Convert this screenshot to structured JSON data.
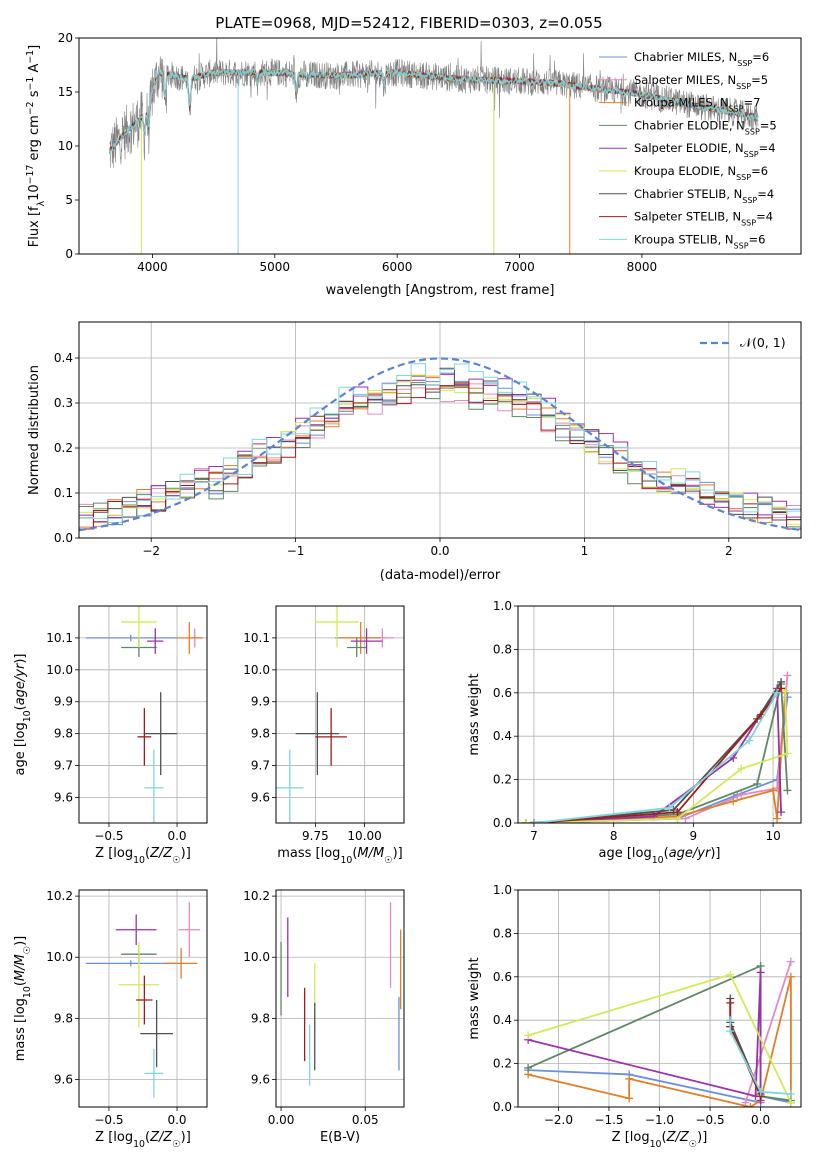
{
  "figure_title": "PLATE=0968, MJD=52412, FIBERID=0303, z=0.055",
  "colors": {
    "chabrier_miles": "#6b8fd8",
    "salpeter_miles": "#e58ac0",
    "kroupa_miles": "#e07f2a",
    "chabrier_elodie": "#5e8766",
    "salpeter_elodie": "#9932aa",
    "kroupa_elodie": "#d4e85a",
    "chabrier_stelib": "#505050",
    "salpeter_stelib": "#a01b1b",
    "kroupa_stelib": "#7fd6dc",
    "data": "#808080",
    "normal": "#5b84d0"
  },
  "chart_data": [
    {
      "id": "spectrum",
      "type": "line",
      "title": "PLATE=0968, MJD=52412, FIBERID=0303, z=0.055",
      "xlabel": "wavelength [Angstrom, rest frame]",
      "ylabel": "Flux [f_λ 10^-17 erg cm^-2 s^-1 A^-1]",
      "xlim": [
        3400,
        9300
      ],
      "ylim": [
        0,
        20
      ],
      "xticks": [
        4000,
        5000,
        6000,
        7000,
        8000
      ],
      "yticks": [
        0,
        5,
        10,
        15,
        20
      ],
      "grid": false,
      "legend_position": "top-right",
      "legend": [
        {
          "label": "Chabrier MILES, N",
          "sub": "SSP",
          "suffix": "=6"
        },
        {
          "label": "Salpeter MILES, N",
          "sub": "SSP",
          "suffix": "=5"
        },
        {
          "label": "Kroupa MILES, N",
          "sub": "SSP",
          "suffix": "=7"
        },
        {
          "label": "Chabrier ELODIE, N",
          "sub": "SSP",
          "suffix": "=5"
        },
        {
          "label": "Salpeter ELODIE, N",
          "sub": "SSP",
          "suffix": "=4"
        },
        {
          "label": "Kroupa ELODIE, N",
          "sub": "SSP",
          "suffix": "=6"
        },
        {
          "label": "Chabrier STELIB, N",
          "sub": "SSP",
          "suffix": "=4"
        },
        {
          "label": "Salpeter STELIB, N",
          "sub": "SSP",
          "suffix": "=4"
        },
        {
          "label": "Kroupa STELIB, N",
          "sub": "SSP",
          "suffix": "=6"
        }
      ],
      "continuum": [
        [
          3650,
          9.5
        ],
        [
          3720,
          10.5
        ],
        [
          3800,
          11.5
        ],
        [
          3900,
          12.5
        ],
        [
          3960,
          13.5
        ],
        [
          4050,
          16.8
        ],
        [
          4300,
          16.2
        ],
        [
          4500,
          16.8
        ],
        [
          5000,
          16.8
        ],
        [
          5500,
          16.5
        ],
        [
          6000,
          16.8
        ],
        [
          6500,
          16.2
        ],
        [
          7000,
          16.0
        ],
        [
          7300,
          15.8
        ],
        [
          7500,
          15.5
        ],
        [
          8000,
          14.8
        ],
        [
          8400,
          13.8
        ],
        [
          8800,
          13.0
        ],
        [
          8950,
          12.6
        ]
      ],
      "absorption_lines": [
        [
          3934,
          11.0
        ],
        [
          3969,
          11.5
        ],
        [
          4102,
          14.2
        ],
        [
          4304,
          13.2
        ],
        [
          4861,
          15.8
        ],
        [
          5175,
          14.8
        ],
        [
          5270,
          15.8
        ],
        [
          5893,
          15.5
        ]
      ]
    },
    {
      "id": "residuals",
      "type": "bar",
      "xlabel": "(data-model)/error",
      "ylabel": "Normed distribution",
      "xlim": [
        -2.5,
        2.5
      ],
      "ylim": [
        0,
        0.48
      ],
      "xticks": [
        -2,
        -1,
        0,
        1,
        2
      ],
      "yticks": [
        0.0,
        0.1,
        0.2,
        0.3,
        0.4
      ],
      "grid": true,
      "bin_width": 0.1,
      "legend": "𝒩(0, 1)",
      "legend_position": "top-right",
      "peaks": [
        0.37,
        0.36,
        0.38,
        0.35,
        0.39,
        0.37,
        0.38,
        0.36,
        0.4
      ]
    },
    {
      "id": "age_vs_Z",
      "type": "scatter",
      "xlabel": "Z [log10(Z/Z☉)]",
      "ylabel": "age  [log10(age/yr)]",
      "xlim": [
        -0.72,
        0.22
      ],
      "ylim": [
        9.52,
        10.2
      ],
      "xticks": [
        -0.5,
        0.0
      ],
      "yticks": [
        9.6,
        9.7,
        9.8,
        9.9,
        10.0,
        10.1
      ],
      "grid": true,
      "points": [
        {
          "x": -0.34,
          "y": 10.1,
          "xerr": 0.33,
          "yerr": 0.01
        },
        {
          "x": 0.13,
          "y": 10.1,
          "xerr": 0.05,
          "yerr": 0.03
        },
        {
          "x": 0.09,
          "y": 10.1,
          "xerr": 0.1,
          "yerr": 0.05
        },
        {
          "x": -0.28,
          "y": 10.07,
          "xerr": 0.13,
          "yerr": 0.03
        },
        {
          "x": -0.16,
          "y": 10.09,
          "xerr": 0.06,
          "yerr": 0.04
        },
        {
          "x": -0.28,
          "y": 10.15,
          "xerr": 0.13,
          "yerr": 0.08
        },
        {
          "x": -0.12,
          "y": 9.8,
          "xerr": 0.12,
          "yerr": 0.13
        },
        {
          "x": -0.24,
          "y": 9.79,
          "xerr": 0.05,
          "yerr": 0.09
        },
        {
          "x": -0.17,
          "y": 9.63,
          "xerr": 0.07,
          "yerr": 0.12
        }
      ]
    },
    {
      "id": "age_vs_mass",
      "type": "scatter",
      "xlabel": "mass [log10(M/M☉)]",
      "ylabel": "",
      "xlim": [
        9.55,
        10.2
      ],
      "ylim": [
        9.52,
        10.2
      ],
      "xticks": [
        9.75,
        10.0
      ],
      "yticks": [
        9.6,
        9.7,
        9.8,
        9.9,
        10.0,
        10.1
      ],
      "grid": true,
      "points": [
        {
          "x": 9.98,
          "y": 10.1,
          "xerr": 0.13,
          "yerr": 0.01
        },
        {
          "x": 10.09,
          "y": 10.1,
          "xerr": 0.06,
          "yerr": 0.03
        },
        {
          "x": 9.98,
          "y": 10.1,
          "xerr": 0.1,
          "yerr": 0.05
        },
        {
          "x": 9.96,
          "y": 10.07,
          "xerr": 0.05,
          "yerr": 0.03
        },
        {
          "x": 10.01,
          "y": 10.09,
          "xerr": 0.08,
          "yerr": 0.04
        },
        {
          "x": 9.86,
          "y": 10.15,
          "xerr": 0.11,
          "yerr": 0.08
        },
        {
          "x": 9.76,
          "y": 9.8,
          "xerr": 0.11,
          "yerr": 0.13
        },
        {
          "x": 9.83,
          "y": 9.79,
          "xerr": 0.08,
          "yerr": 0.09
        },
        {
          "x": 9.62,
          "y": 9.63,
          "xerr": 0.07,
          "yerr": 0.12
        }
      ]
    },
    {
      "id": "mass_weight_vs_age",
      "type": "line",
      "xlabel": "age  [log10(age/yr)]",
      "ylabel": "mass weight",
      "xlim": [
        6.8,
        10.35
      ],
      "ylim": [
        0,
        1.0
      ],
      "xticks": [
        7,
        8,
        9,
        10
      ],
      "yticks": [
        0.0,
        0.2,
        0.4,
        0.6,
        0.8,
        1.0
      ],
      "grid": true,
      "series": [
        {
          "x": [
            6.9,
            8.8,
            9.55,
            10.05,
            10.18
          ],
          "y": [
            0.0,
            0.02,
            0.13,
            0.2,
            0.58
          ]
        },
        {
          "x": [
            6.9,
            8.9,
            9.6,
            10.05,
            10.18
          ],
          "y": [
            0.0,
            0.02,
            0.13,
            0.16,
            0.68
          ]
        },
        {
          "x": [
            6.9,
            8.8,
            9.5,
            10.0,
            10.05,
            10.15
          ],
          "y": [
            0.0,
            0.03,
            0.1,
            0.15,
            0.02,
            0.6
          ]
        },
        {
          "x": [
            6.9,
            8.8,
            9.8,
            10.1,
            10.18
          ],
          "y": [
            0.0,
            0.04,
            0.18,
            0.64,
            0.15
          ]
        },
        {
          "x": [
            7.0,
            8.5,
            9.5,
            10.05,
            10.1
          ],
          "y": [
            0.0,
            0.03,
            0.3,
            0.62,
            0.05
          ]
        },
        {
          "x": [
            6.9,
            8.8,
            9.6,
            10.18,
            10.15
          ],
          "y": [
            0.0,
            0.02,
            0.25,
            0.32,
            0.61
          ]
        },
        {
          "x": [
            7.0,
            8.75,
            9.8,
            10.1
          ],
          "y": [
            0.0,
            0.06,
            0.48,
            0.65
          ]
        },
        {
          "x": [
            7.0,
            8.8,
            9.85,
            10.1
          ],
          "y": [
            0.0,
            0.05,
            0.5,
            0.62
          ]
        },
        {
          "x": [
            7.0,
            8.7,
            9.7,
            10.05
          ],
          "y": [
            0.0,
            0.07,
            0.38,
            0.6
          ]
        }
      ]
    },
    {
      "id": "mass_vs_Z",
      "type": "scatter",
      "xlabel": "Z [log10(Z/Z☉)]",
      "ylabel": "mass [log10(M/M☉)]",
      "xlim": [
        -0.72,
        0.22
      ],
      "ylim": [
        9.51,
        10.22
      ],
      "xticks": [
        -0.5,
        0.0
      ],
      "yticks": [
        9.6,
        9.8,
        10.0,
        10.2
      ],
      "grid": true,
      "points": [
        {
          "x": -0.34,
          "y": 9.98,
          "xerr": 0.33,
          "yerr": 0.01
        },
        {
          "x": 0.09,
          "y": 10.09,
          "xerr": 0.08,
          "yerr": 0.09
        },
        {
          "x": 0.03,
          "y": 9.98,
          "xerr": 0.12,
          "yerr": 0.05
        },
        {
          "x": -0.28,
          "y": 10.01,
          "xerr": 0.13,
          "yerr": 0.03
        },
        {
          "x": -0.3,
          "y": 10.09,
          "xerr": 0.15,
          "yerr": 0.05
        },
        {
          "x": -0.28,
          "y": 9.91,
          "xerr": 0.15,
          "yerr": 0.14
        },
        {
          "x": -0.15,
          "y": 9.75,
          "xerr": 0.12,
          "yerr": 0.11
        },
        {
          "x": -0.24,
          "y": 9.86,
          "xerr": 0.06,
          "yerr": 0.08
        },
        {
          "x": -0.17,
          "y": 9.62,
          "xerr": 0.07,
          "yerr": 0.08
        }
      ]
    },
    {
      "id": "mass_vs_EBV",
      "type": "scatter",
      "xlabel": "E(B-V)",
      "ylabel": "",
      "xlim": [
        -0.003,
        0.073
      ],
      "ylim": [
        9.51,
        10.22
      ],
      "xticks": [
        0.0,
        0.05
      ],
      "yticks": [
        9.6,
        9.8,
        10.0,
        10.2
      ],
      "grid": true,
      "points": [
        {
          "x": 0.07,
          "y": 9.75,
          "yerr": 0.12
        },
        {
          "x": 0.065,
          "y": 10.04,
          "yerr": 0.14
        },
        {
          "x": 0.071,
          "y": 9.96,
          "yerr": 0.13
        },
        {
          "x": 0.0,
          "y": 9.93,
          "yerr": 0.12
        },
        {
          "x": 0.004,
          "y": 10.0,
          "yerr": 0.13
        },
        {
          "x": 0.02,
          "y": 9.87,
          "yerr": 0.11
        },
        {
          "x": 0.02,
          "y": 9.74,
          "yerr": 0.11
        },
        {
          "x": 0.014,
          "y": 9.78,
          "yerr": 0.12
        },
        {
          "x": 0.017,
          "y": 9.68,
          "yerr": 0.1
        }
      ]
    },
    {
      "id": "mass_weight_vs_Z",
      "type": "line",
      "xlabel": "Z [log10(Z/Z☉)]",
      "ylabel": "mass weight",
      "xlim": [
        -2.4,
        0.4
      ],
      "ylim": [
        0,
        1.0
      ],
      "xticks": [
        -2.0,
        -1.5,
        -1.0,
        -0.5,
        0.0
      ],
      "yticks": [
        0.0,
        0.2,
        0.4,
        0.6,
        0.8,
        1.0
      ],
      "grid": true,
      "series": [
        {
          "x": [
            -2.3,
            -1.3,
            0.0,
            0.0,
            0.3
          ],
          "y": [
            0.17,
            0.15,
            0.02,
            0.05,
            0.02
          ]
        },
        {
          "x": [
            -0.15,
            0.3
          ],
          "y": [
            0.02,
            0.67
          ]
        },
        {
          "x": [
            -2.3,
            -1.3,
            -1.3,
            -0.1,
            0.0,
            0.3,
            0.3
          ],
          "y": [
            0.15,
            0.04,
            0.13,
            0.0,
            0.03,
            0.6,
            0.02
          ]
        },
        {
          "x": [
            -2.3,
            0.0,
            0.0,
            0.3
          ],
          "y": [
            0.18,
            0.65,
            0.05,
            0.03
          ]
        },
        {
          "x": [
            -2.3,
            -0.05,
            0.0,
            0.0
          ],
          "y": [
            0.31,
            0.05,
            0.62,
            0.03
          ]
        },
        {
          "x": [
            -2.3,
            -0.3,
            0.3
          ],
          "y": [
            0.33,
            0.61,
            0.02
          ]
        },
        {
          "x": [
            -0.3,
            -0.3,
            0.0
          ],
          "y": [
            0.5,
            0.39,
            0.06
          ]
        },
        {
          "x": [
            -0.3,
            -0.3,
            0.0
          ],
          "y": [
            0.48,
            0.37,
            0.05
          ]
        },
        {
          "x": [
            -0.3,
            -0.3,
            0.0,
            0.3
          ],
          "y": [
            0.4,
            0.35,
            0.07,
            0.06
          ]
        }
      ]
    }
  ]
}
